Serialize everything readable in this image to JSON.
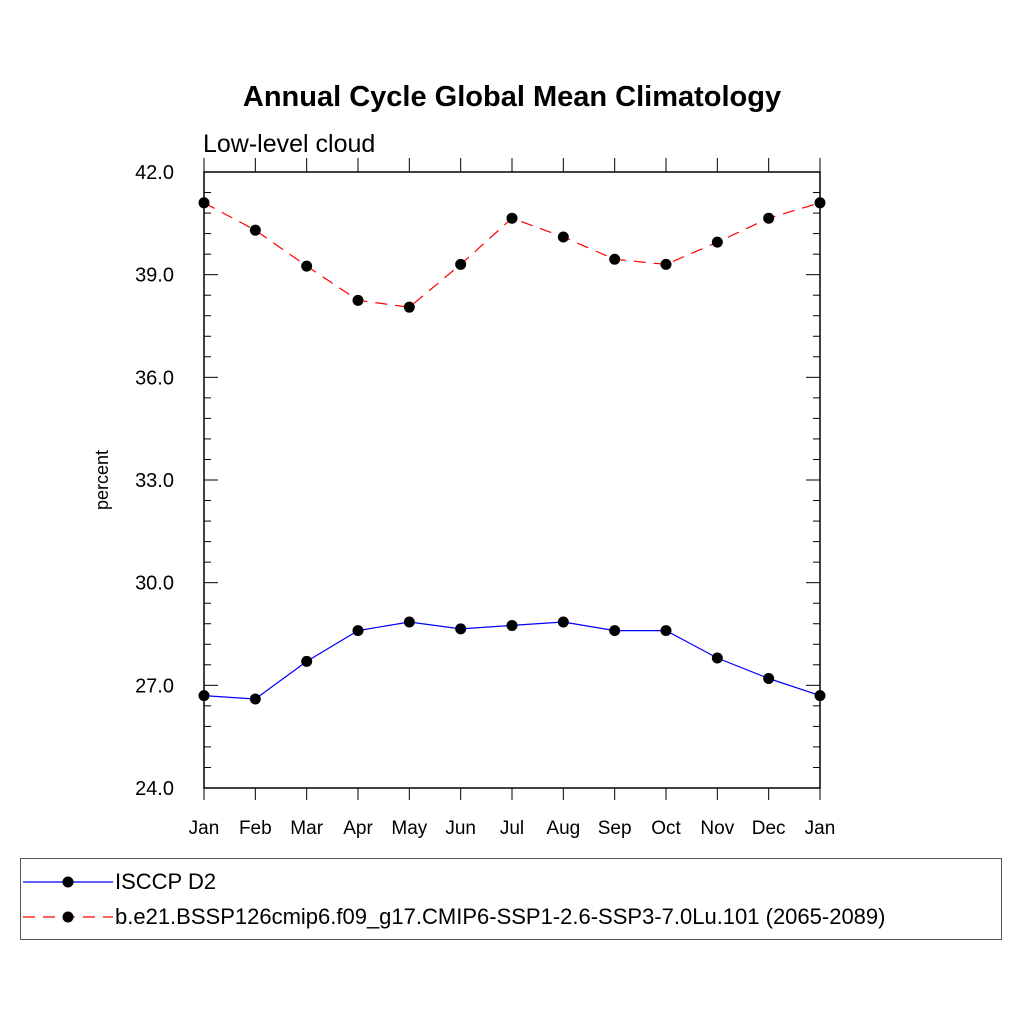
{
  "chart_data": {
    "type": "line",
    "title": "Annual Cycle Global Mean Climatology",
    "subtitle": "Low-level cloud",
    "xlabel": "",
    "ylabel": "percent",
    "categories": [
      "Jan",
      "Feb",
      "Mar",
      "Apr",
      "May",
      "Jun",
      "Jul",
      "Aug",
      "Sep",
      "Oct",
      "Nov",
      "Dec",
      "Jan"
    ],
    "ylim": [
      24.0,
      42.0
    ],
    "yticks": [
      "24.0",
      "27.0",
      "30.0",
      "33.0",
      "36.0",
      "39.0",
      "42.0"
    ],
    "grid": false,
    "legend_position": "bottom",
    "series": [
      {
        "name": "ISCCP D2",
        "color": "#0000ff",
        "dash": "solid",
        "marker": "filled-circle",
        "values": [
          26.7,
          26.6,
          27.7,
          28.6,
          28.85,
          28.65,
          28.75,
          28.85,
          28.6,
          28.6,
          27.8,
          27.2,
          26.7
        ]
      },
      {
        "name": "b.e21.BSSP126cmip6.f09_g17.CMIP6-SSP1-2.6-SSP3-7.0Lu.101 (2065-2089)",
        "color": "#ff0000",
        "dash": "dashed",
        "marker": "filled-circle",
        "values": [
          41.1,
          40.3,
          39.25,
          38.25,
          38.05,
          39.3,
          40.65,
          40.1,
          39.45,
          39.3,
          39.95,
          40.65,
          41.1
        ]
      }
    ]
  }
}
